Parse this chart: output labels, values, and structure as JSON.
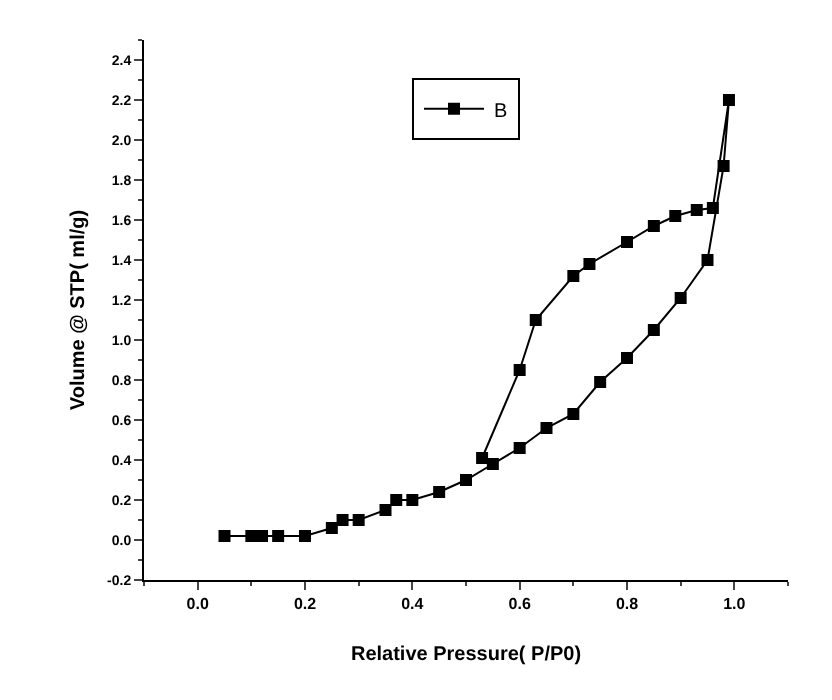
{
  "chart_data": {
    "type": "line",
    "xlabel": "Relative Pressure( P/P0)",
    "ylabel": "Volume @ STP( ml/g)",
    "xlim": [
      -0.1,
      1.1
    ],
    "xticks": [
      {
        "value": 0,
        "label": "0.0"
      },
      0.2,
      0.4,
      0.6,
      0.8,
      {
        "value": 1,
        "label": "1.0"
      }
    ],
    "ylim": [
      -0.2,
      2.5
    ],
    "yticks": [
      -0.2,
      {
        "value": 0,
        "label": "0.0"
      },
      0.2,
      0.4,
      0.6,
      0.8,
      {
        "value": 1,
        "label": "1.0"
      },
      1.2,
      1.4,
      1.6,
      1.8,
      {
        "value": 2,
        "label": "2.0"
      },
      2.2,
      2.4
    ],
    "series": [
      {
        "name": "B",
        "color": "#000000",
        "x": [
          0.05,
          0.1,
          0.12,
          0.15,
          0.2,
          0.25,
          0.27,
          0.3,
          0.35,
          0.37,
          0.4,
          0.45,
          0.5,
          0.55,
          0.6,
          0.65,
          0.7,
          0.75,
          0.8,
          0.85,
          0.9,
          0.95,
          0.98,
          0.99,
          0.96,
          0.93,
          0.89,
          0.85,
          0.8,
          0.73,
          0.7,
          0.63,
          0.6,
          0.53
        ],
        "values": [
          0.02,
          0.02,
          0.02,
          0.02,
          0.02,
          0.06,
          0.1,
          0.1,
          0.15,
          0.2,
          0.2,
          0.24,
          0.3,
          0.38,
          0.46,
          0.56,
          0.63,
          0.79,
          0.91,
          1.05,
          1.21,
          1.4,
          1.87,
          2.2,
          1.66,
          1.65,
          1.62,
          1.57,
          1.49,
          1.38,
          1.32,
          1.1,
          0.85,
          0.41
        ]
      }
    ],
    "legend": "top",
    "marker": "square",
    "line_style": "solid",
    "grid": false
  }
}
